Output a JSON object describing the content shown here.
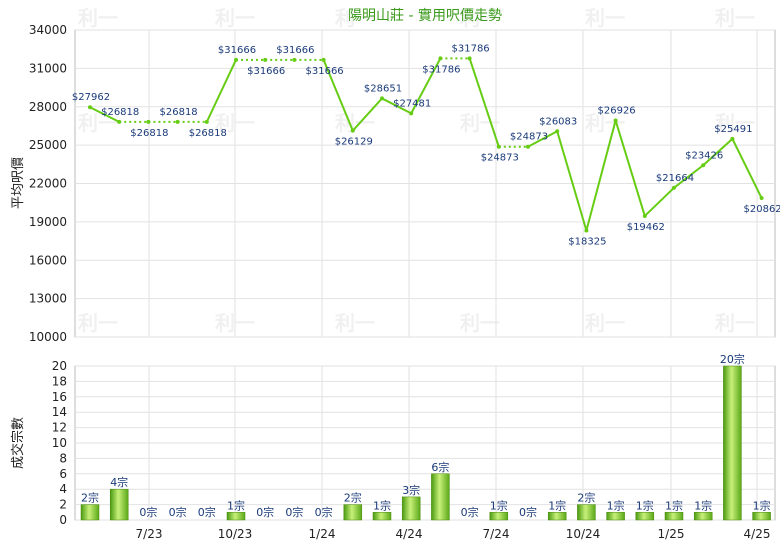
{
  "chart_data": [
    {
      "type": "line",
      "title": "陽明山莊 - 實用呎價走勢",
      "ylabel": "平均呎價",
      "ylim": [
        10000,
        34000
      ],
      "yticks": [
        10000,
        13000,
        16000,
        19000,
        22000,
        25000,
        28000,
        31000,
        34000
      ],
      "xticks": [
        "7/23",
        "10/23",
        "1/24",
        "4/24",
        "7/24",
        "10/24",
        "1/25",
        "4/25"
      ],
      "grid": true,
      "series": [
        {
          "points": [
            {
              "x": 0,
              "y": 27962,
              "label": "$27962"
            },
            {
              "x": 1,
              "y": 26818,
              "label": "$26818"
            },
            {
              "x": 2,
              "y": 26818,
              "label": "$26818"
            },
            {
              "x": 3,
              "y": 26818,
              "label": "$26818"
            },
            {
              "x": 4,
              "y": 26818,
              "label": "$26818"
            },
            {
              "x": 5,
              "y": 31666,
              "label": "$31666"
            },
            {
              "x": 6,
              "y": 31666,
              "label": "$31666"
            },
            {
              "x": 7,
              "y": 31666,
              "label": "$31666"
            },
            {
              "x": 8,
              "y": 31666,
              "label": "$31666"
            },
            {
              "x": 9,
              "y": 26129,
              "label": "$26129"
            },
            {
              "x": 10,
              "y": 28651,
              "label": "$28651"
            },
            {
              "x": 11,
              "y": 27481,
              "label": "$27481"
            },
            {
              "x": 12,
              "y": 31786,
              "label": "$31786"
            },
            {
              "x": 13,
              "y": 31786,
              "label": "$31786"
            },
            {
              "x": 14,
              "y": 24873,
              "label": "$24873"
            },
            {
              "x": 15,
              "y": 24873,
              "label": "$24873"
            },
            {
              "x": 16,
              "y": 26083,
              "label": "$26083"
            },
            {
              "x": 17,
              "y": 18325,
              "label": "$18325"
            },
            {
              "x": 18,
              "y": 26926,
              "label": "$26926"
            },
            {
              "x": 19,
              "y": 19462,
              "label": "$19462"
            },
            {
              "x": 20,
              "y": 21664,
              "label": "$21664"
            },
            {
              "x": 21,
              "y": 23426,
              "label": "$23426"
            },
            {
              "x": 22,
              "y": 25491,
              "label": "$25491"
            },
            {
              "x": 23,
              "y": 20862,
              "label": "$20862"
            }
          ]
        }
      ]
    },
    {
      "type": "bar",
      "ylabel": "成交宗數",
      "ylim": [
        0,
        20
      ],
      "yticks": [
        0,
        2,
        4,
        6,
        8,
        10,
        12,
        14,
        16,
        18,
        20
      ],
      "xticks": [
        "7/23",
        "10/23",
        "1/24",
        "4/24",
        "7/24",
        "10/24",
        "1/25",
        "4/25"
      ],
      "values": [
        2,
        4,
        0,
        0,
        0,
        1,
        0,
        0,
        0,
        2,
        1,
        3,
        6,
        0,
        1,
        0,
        1,
        2,
        1,
        1,
        1,
        1,
        20,
        1
      ],
      "labels": [
        "2宗",
        "4宗",
        "0宗",
        "0宗",
        "0宗",
        "1宗",
        "0宗",
        "0宗",
        "0宗",
        "2宗",
        "1宗",
        "3宗",
        "6宗",
        "0宗",
        "1宗",
        "0宗",
        "1宗",
        "2宗",
        "1宗",
        "1宗",
        "1宗",
        "1宗",
        "20宗",
        "1宗"
      ]
    }
  ],
  "watermark": "利一"
}
